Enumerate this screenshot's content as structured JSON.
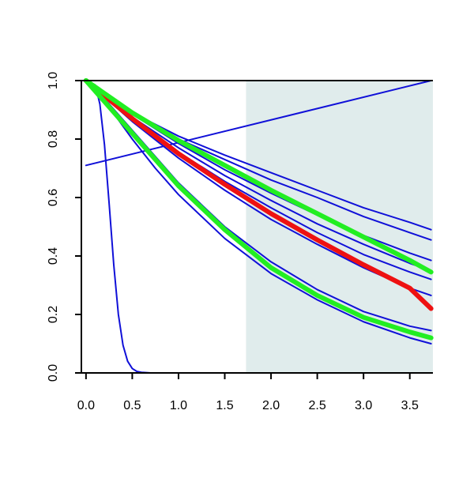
{
  "chart_data": {
    "type": "line",
    "title": "",
    "xlabel": "",
    "ylabel": "",
    "xlim": [
      -0.05,
      3.75
    ],
    "ylim": [
      0.0,
      1.0
    ],
    "x_ticks": [
      "0.0",
      "0.5",
      "1.0",
      "1.5",
      "2.0",
      "2.5",
      "3.0",
      "3.5"
    ],
    "y_ticks": [
      "0.0",
      "0.2",
      "0.4",
      "0.6",
      "0.8",
      "1.0"
    ],
    "grid": false,
    "shaded_region": {
      "x_from": 1.73,
      "x_to": 3.75,
      "color": "#e0ecec"
    },
    "colors": {
      "blue": "#1010d8",
      "red": "#ee1111",
      "green": "#22ee22",
      "axis": "#000000"
    },
    "series": [
      {
        "color": "blue",
        "weight": "thin",
        "x": [
          0,
          0.5,
          1,
          1.5,
          2,
          2.5,
          3,
          3.5,
          3.73
        ],
        "y": [
          1.0,
          0.89,
          0.81,
          0.745,
          0.685,
          0.625,
          0.565,
          0.515,
          0.49
        ]
      },
      {
        "color": "blue",
        "weight": "thin",
        "x": [
          0,
          0.5,
          1,
          1.5,
          2,
          2.5,
          3,
          3.5,
          3.73
        ],
        "y": [
          1.0,
          0.89,
          0.8,
          0.73,
          0.66,
          0.6,
          0.535,
          0.48,
          0.455
        ]
      },
      {
        "color": "blue",
        "weight": "thin",
        "x": [
          0,
          0.5,
          1,
          1.5,
          2,
          2.5,
          3,
          3.5,
          3.73
        ],
        "y": [
          1.0,
          0.885,
          0.785,
          0.695,
          0.615,
          0.54,
          0.47,
          0.41,
          0.385
        ]
      },
      {
        "color": "blue",
        "weight": "thin",
        "x": [
          0,
          0.5,
          1,
          1.5,
          2,
          2.5,
          3,
          3.5,
          3.73
        ],
        "y": [
          1.0,
          0.875,
          0.77,
          0.675,
          0.59,
          0.51,
          0.44,
          0.375,
          0.35
        ]
      },
      {
        "color": "blue",
        "weight": "thin",
        "x": [
          0,
          0.5,
          1,
          1.5,
          2,
          2.5,
          3,
          3.5,
          3.73
        ],
        "y": [
          1.0,
          0.87,
          0.755,
          0.655,
          0.565,
          0.48,
          0.405,
          0.345,
          0.32
        ]
      },
      {
        "color": "blue",
        "weight": "thin",
        "x": [
          0,
          0.5,
          1,
          1.5,
          2,
          2.5,
          3,
          3.5,
          3.73
        ],
        "y": [
          1.0,
          0.86,
          0.735,
          0.625,
          0.525,
          0.44,
          0.36,
          0.29,
          0.265
        ]
      },
      {
        "color": "blue",
        "weight": "thin",
        "x": [
          0,
          0.25,
          0.5,
          0.75,
          1,
          1.5,
          2,
          2.5,
          3,
          3.5,
          3.73
        ],
        "y": [
          1.0,
          0.92,
          0.83,
          0.74,
          0.65,
          0.5,
          0.38,
          0.285,
          0.21,
          0.16,
          0.145
        ]
      },
      {
        "color": "blue",
        "weight": "thin",
        "x": [
          0,
          0.25,
          0.5,
          0.75,
          1,
          1.5,
          2,
          2.5,
          3,
          3.5,
          3.73
        ],
        "y": [
          1.0,
          0.91,
          0.8,
          0.7,
          0.61,
          0.46,
          0.34,
          0.25,
          0.175,
          0.12,
          0.1
        ]
      },
      {
        "color": "blue",
        "weight": "thin",
        "x": [
          0,
          0.1,
          0.15,
          0.2,
          0.25,
          0.3,
          0.35,
          0.4,
          0.45,
          0.5,
          0.55,
          0.6,
          0.7,
          0.8,
          3.73
        ],
        "y": [
          1.0,
          0.985,
          0.92,
          0.78,
          0.58,
          0.37,
          0.2,
          0.095,
          0.04,
          0.015,
          0.005,
          0.002,
          0.0,
          0.0,
          0.0
        ]
      },
      {
        "color": "blue",
        "weight": "thin",
        "x": [
          0,
          3.73
        ],
        "y": [
          0.71,
          1.0
        ]
      },
      {
        "color": "red",
        "weight": "thick",
        "x": [
          0,
          0.5,
          1,
          1.5,
          2,
          2.5,
          3,
          3.5,
          3.73
        ],
        "y": [
          1.0,
          0.87,
          0.75,
          0.645,
          0.545,
          0.455,
          0.37,
          0.29,
          0.22
        ]
      },
      {
        "color": "green",
        "weight": "thick",
        "x": [
          0,
          0.5,
          1,
          1.5,
          2,
          2.5,
          3,
          3.5,
          3.73
        ],
        "y": [
          1.0,
          0.89,
          0.795,
          0.71,
          0.625,
          0.545,
          0.465,
          0.385,
          0.345
        ]
      },
      {
        "color": "green",
        "weight": "thick",
        "x": [
          0,
          0.25,
          0.5,
          0.75,
          1,
          1.5,
          2,
          2.5,
          3,
          3.5,
          3.73
        ],
        "y": [
          1.0,
          0.91,
          0.82,
          0.73,
          0.64,
          0.49,
          0.36,
          0.265,
          0.19,
          0.14,
          0.12
        ]
      }
    ]
  }
}
